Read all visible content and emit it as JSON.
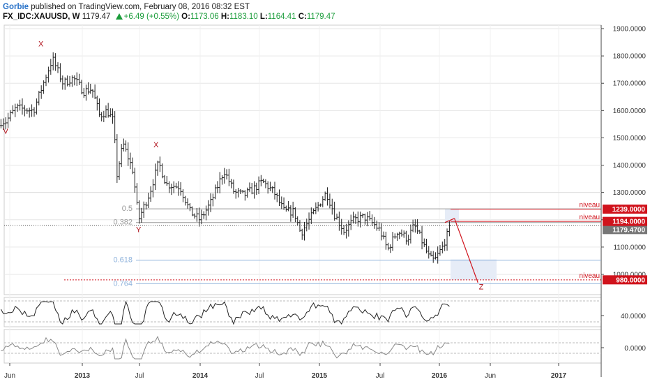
{
  "header": {
    "author": "Gorbie",
    "published": "published on TradingView.com, February 08, 2016 08:32 EST",
    "symbol": "FX_IDC:XAUUSD, W",
    "price": "1179.47",
    "change": "+6.49 (+0.55%)",
    "open_label": "O:",
    "open": "1173.06",
    "high_label": "H:",
    "high": "1183.10",
    "low_label": "L:",
    "low": "1164.41",
    "close_label": "C:",
    "close": "1179.47"
  },
  "colors": {
    "up": "#1a9c3a",
    "author": "#2a73c9",
    "red": "#d0131c",
    "fib": "#8fb3dc",
    "grid": "#e6e6e6",
    "bars": "#222222"
  },
  "chart_data": [
    {
      "type": "bar",
      "description_kind": "ohlc-weekly",
      "yaxis": {
        "min": 960,
        "max": 1900,
        "ticks": [
          "1900.0000",
          "1800.0000",
          "1700.0000",
          "1600.0000",
          "1500.0000",
          "1400.0000",
          "1300.0000",
          "1200.0000",
          "1100.0000",
          "1000.0000"
        ]
      },
      "xaxis": {
        "ticks": [
          "Jun",
          "2013",
          "Jul",
          "2014",
          "Jul",
          "2015",
          "Jul",
          "2016",
          "Jun",
          "2017"
        ]
      },
      "price_path": [
        [
          "2012-05-20",
          1560
        ],
        [
          "2012-06-20",
          1610
        ],
        [
          "2012-08-10",
          1600
        ],
        [
          "2012-09-20",
          1740
        ],
        [
          "2012-10-05",
          1790
        ],
        [
          "2012-11-05",
          1700
        ],
        [
          "2012-12-05",
          1720
        ],
        [
          "2013-01-05",
          1670
        ],
        [
          "2013-02-01",
          1680
        ],
        [
          "2013-02-25",
          1580
        ],
        [
          "2013-03-20",
          1600
        ],
        [
          "2013-04-10",
          1560
        ],
        [
          "2013-04-20",
          1360
        ],
        [
          "2013-05-10",
          1480
        ],
        [
          "2013-06-10",
          1380
        ],
        [
          "2013-06-28",
          1200
        ],
        [
          "2013-08-01",
          1300
        ],
        [
          "2013-08-28",
          1410
        ],
        [
          "2013-09-20",
          1330
        ],
        [
          "2013-11-01",
          1320
        ],
        [
          "2013-12-01",
          1230
        ],
        [
          "2013-12-31",
          1200
        ],
        [
          "2014-02-01",
          1260
        ],
        [
          "2014-03-15",
          1380
        ],
        [
          "2014-04-15",
          1300
        ],
        [
          "2014-05-15",
          1290
        ],
        [
          "2014-06-15",
          1315
        ],
        [
          "2014-07-10",
          1340
        ],
        [
          "2014-08-15",
          1300
        ],
        [
          "2014-09-15",
          1230
        ],
        [
          "2014-10-15",
          1230
        ],
        [
          "2014-11-05",
          1150
        ],
        [
          "2014-12-01",
          1200
        ],
        [
          "2015-01-22",
          1300
        ],
        [
          "2015-02-15",
          1220
        ],
        [
          "2015-03-15",
          1160
        ],
        [
          "2015-04-15",
          1200
        ],
        [
          "2015-05-15",
          1210
        ],
        [
          "2015-06-15",
          1180
        ],
        [
          "2015-07-01",
          1160
        ],
        [
          "2015-07-24",
          1090
        ],
        [
          "2015-08-24",
          1160
        ],
        [
          "2015-09-24",
          1130
        ],
        [
          "2015-10-15",
          1180
        ],
        [
          "2015-11-01",
          1140
        ],
        [
          "2015-12-01",
          1060
        ],
        [
          "2015-12-17",
          1050
        ],
        [
          "2016-01-10",
          1100
        ],
        [
          "2016-02-05",
          1180
        ]
      ],
      "horizontal_levels": [
        {
          "label": "niveau",
          "value": 1239.0,
          "tag": "1239.0000"
        },
        {
          "label": "niveau",
          "value": 1194.0,
          "tag": "1194.0000"
        },
        {
          "label": "niveau",
          "value": 980.0,
          "tag": "980.0000"
        }
      ],
      "last_price_tag": "1179.4700",
      "fib_levels": [
        {
          "label": "0.5",
          "value": 1240
        },
        {
          "label": "0.382",
          "value": 1190
        },
        {
          "label": "0.618",
          "value": 1052
        },
        {
          "label": "0.764",
          "value": 966
        }
      ],
      "wave_labels": [
        {
          "text": "V",
          "date": "2012-05-20",
          "value": 1515
        },
        {
          "text": "X",
          "date": "2012-09-01",
          "value": 1835
        },
        {
          "text": "X",
          "date": "2013-08-20",
          "value": 1465
        },
        {
          "text": "Y",
          "date": "2013-06-28",
          "value": 1155
        },
        {
          "text": "Z",
          "date": "2016-05-05",
          "value": 945
        }
      ],
      "projection": [
        [
          "2016-02-15",
          1205
        ],
        [
          "2016-04-25",
          970
        ]
      ]
    },
    {
      "type": "line",
      "panel": "oscillator-1",
      "yaxis_tick": "40.0000"
    },
    {
      "type": "line",
      "panel": "oscillator-2",
      "yaxis_tick": "0.0000"
    }
  ]
}
